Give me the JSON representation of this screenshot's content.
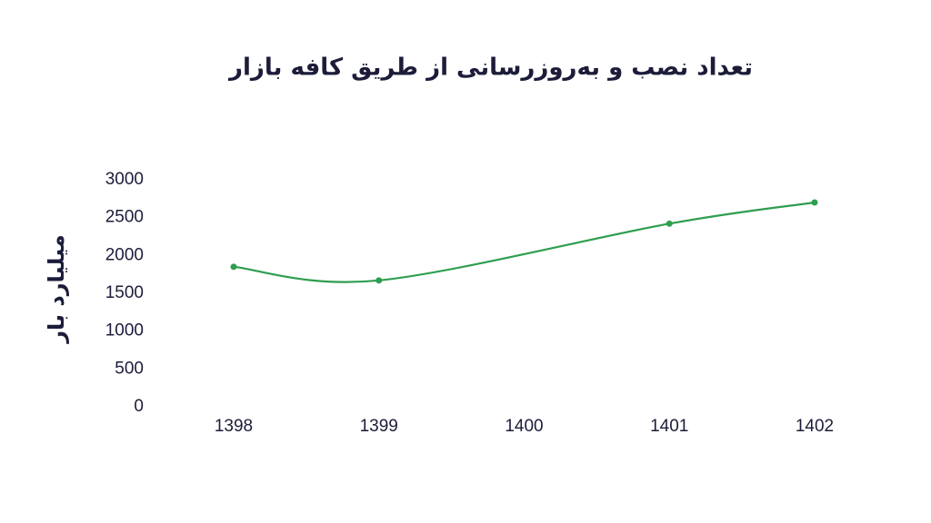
{
  "chart_data": {
    "type": "line",
    "title": "تعداد نصب و به‌روزرسانی از طریق کافه بازار",
    "y_label": "میلیارد بار",
    "x": [
      1398,
      1399,
      1401,
      1402
    ],
    "values": [
      1850,
      1670,
      2420,
      2700
    ],
    "color": "#2e9e4f",
    "xlim": [
      1398,
      1402
    ],
    "xticks": [
      1398,
      1399,
      1400,
      1401,
      1402
    ],
    "ylim": [
      0,
      3000
    ],
    "yticks": [
      0,
      500,
      1000,
      1500,
      2000,
      2500,
      3000
    ],
    "grid": false
  }
}
